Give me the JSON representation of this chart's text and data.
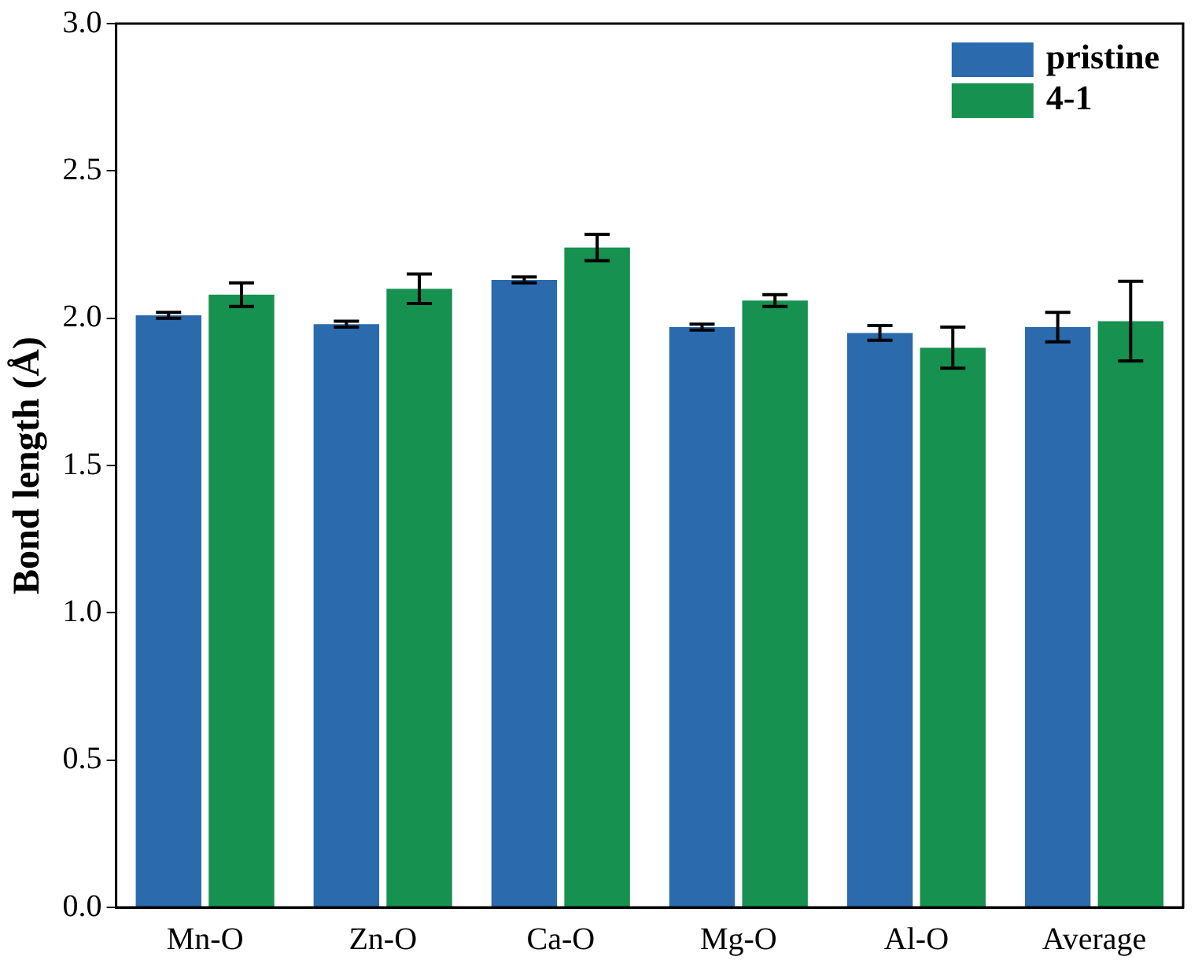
{
  "chart_data": {
    "type": "bar",
    "ylabel": "Bond length (Å)",
    "categories": [
      "Mn-O",
      "Zn-O",
      "Ca-O",
      "Mg-O",
      "Al-O",
      "Average"
    ],
    "series": [
      {
        "name": "pristine",
        "color": "#2a6aad",
        "values": [
          2.01,
          1.98,
          2.13,
          1.97,
          1.95,
          1.97
        ],
        "errors": [
          0.01,
          0.01,
          0.01,
          0.01,
          0.025,
          0.05
        ]
      },
      {
        "name": "4-1",
        "color": "#16914f",
        "values": [
          2.08,
          2.1,
          2.24,
          2.06,
          1.9,
          1.99
        ],
        "errors": [
          0.04,
          0.05,
          0.045,
          0.02,
          0.07,
          0.135
        ]
      }
    ],
    "ylim": [
      0,
      3
    ],
    "yticks": [
      {
        "value": 0,
        "label": "0.0"
      },
      0.5,
      {
        "value": 1,
        "label": "1.0"
      },
      1.5,
      {
        "value": 2,
        "label": "2.0"
      },
      2.5,
      {
        "value": 3,
        "label": "3.0"
      }
    ],
    "legend": "top right",
    "grid": false
  }
}
